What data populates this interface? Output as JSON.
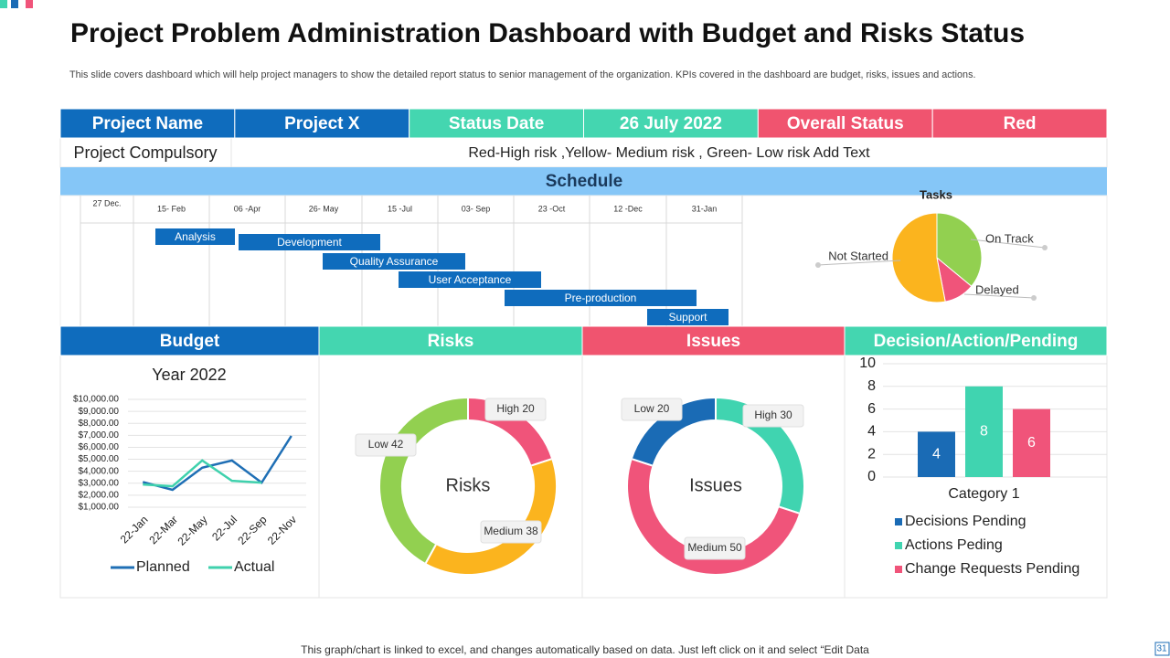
{
  "header": {
    "title": "Project Problem Administration Dashboard with Budget and Risks Status",
    "subtitle": "This slide covers dashboard which will help project managers to show the detailed report status to senior management of the organization. KPIs covered in the dashboard are budget, risks, issues and actions."
  },
  "info_table": {
    "rows": [
      [
        "Project Name",
        "Project X",
        "Status Date",
        "26 July 2022",
        "Overall Status",
        "Red"
      ],
      [
        "Project Compulsory",
        "Red-High risk ,Yellow-  Medium risk , Green-  Low risk Add Text"
      ]
    ]
  },
  "schedule": {
    "title": "Schedule",
    "dates": [
      "27 Dec.",
      "15- Feb",
      "06 -Apr",
      "26- May",
      "15 -Jul",
      "03- Sep",
      "23 -Oct",
      "12 -Dec",
      "31-Jan"
    ],
    "tasks": [
      "Analysis",
      "Development",
      "Quality Assurance",
      "User Acceptance",
      "Pre-production",
      "Support"
    ]
  },
  "sections": [
    "Budget",
    "Risks",
    "Issues",
    "Decision/Action/Pending"
  ],
  "chart_data": [
    {
      "type": "pie",
      "title": "Tasks",
      "categories": [
        "On Track",
        "Delayed",
        "Not Started"
      ],
      "values": [
        36,
        11,
        53
      ],
      "colors": [
        "#92d050",
        "#f0547a",
        "#fbb41e"
      ]
    },
    {
      "type": "line",
      "title": "Year 2022",
      "categories": [
        "22-Jan",
        "22-Mar",
        "22-May",
        "22-Jul",
        "22-Sep",
        "22-Nov"
      ],
      "series": [
        {
          "name": "Planned",
          "color": "#1f6fb5",
          "values": [
            3100,
            2450,
            4300,
            4900,
            3050,
            6950
          ]
        },
        {
          "name": "Actual",
          "color": "#3fd1ad",
          "values": [
            2900,
            2750,
            4900,
            3200,
            3050,
            null
          ]
        }
      ],
      "ylim": [
        1000,
        10000
      ],
      "yticks": [
        {
          "value": 1000,
          "label": "$1,000.00"
        },
        {
          "value": 2000,
          "label": "$2,000.00"
        },
        {
          "value": 3000,
          "label": "$3,000.00"
        },
        {
          "value": 4000,
          "label": "$4,000.00"
        },
        {
          "value": 5000,
          "label": "$5,000.00"
        },
        {
          "value": 6000,
          "label": "$6,000.00"
        },
        {
          "value": 7000,
          "label": "$7,000.00"
        },
        {
          "value": 8000,
          "label": "$8,000.00"
        },
        {
          "value": 9000,
          "label": "$9,000.00"
        },
        {
          "value": 10000,
          "label": "$10,000.00"
        }
      ],
      "grid": true,
      "legend": "bottom"
    },
    {
      "type": "donut",
      "center_label": "Risks",
      "categories": [
        "High",
        "Medium",
        "Low"
      ],
      "values": [
        20,
        38,
        42
      ],
      "value_labels": [
        "High 20",
        "Medium 38",
        "Low 42"
      ],
      "colors": [
        "#f0547a",
        "#fbb41e",
        "#92d050"
      ]
    },
    {
      "type": "donut",
      "center_label": "Issues",
      "categories": [
        "High",
        "Medium",
        "Low"
      ],
      "values": [
        30,
        50,
        20
      ],
      "value_labels": [
        "High 30",
        "Medium 50",
        "Low 20"
      ],
      "colors": [
        "#40d4b0",
        "#f0547a",
        "#1a6bb5"
      ]
    },
    {
      "type": "bar",
      "categories": [
        "Category 1"
      ],
      "series": [
        {
          "name": "Decisions Pending",
          "color": "#1a6bb5",
          "values": [
            4
          ]
        },
        {
          "name": "Actions  Peding",
          "color": "#40d4b0",
          "values": [
            8
          ]
        },
        {
          "name": "Change Requests Pending",
          "color": "#f0547a",
          "values": [
            6
          ]
        }
      ],
      "ylim": [
        0,
        10
      ],
      "yticks": [
        0,
        2,
        4,
        6,
        8,
        10
      ],
      "grid": true,
      "legend": "bottom"
    }
  ],
  "footer": "This graph/chart is linked to excel,  and changes automatically based on data. Just left click on it and select “Edit Data",
  "page_number": 31
}
